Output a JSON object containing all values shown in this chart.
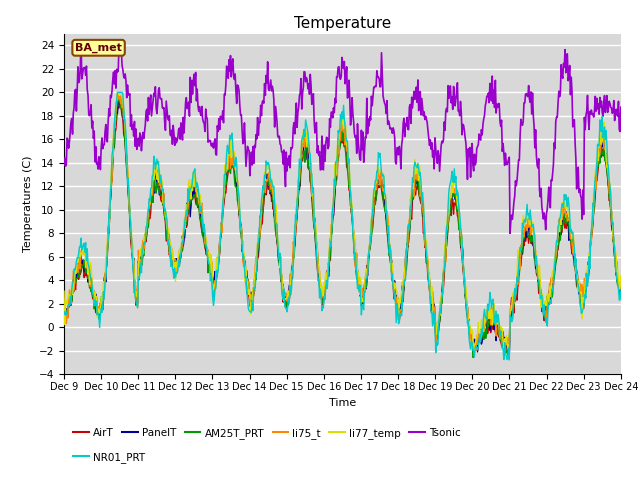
{
  "title": "Temperature",
  "xlabel": "Time",
  "ylabel": "Temperatures (C)",
  "ylim": [
    -4,
    25
  ],
  "yticks": [
    -4,
    -2,
    0,
    2,
    4,
    6,
    8,
    10,
    12,
    14,
    16,
    18,
    20,
    22,
    24
  ],
  "xtick_labels": [
    "Dec 9",
    "Dec 10",
    "Dec 11",
    "Dec 12",
    "Dec 13",
    "Dec 14",
    "Dec 15",
    "Dec 16",
    "Dec 17",
    "Dec 18",
    "Dec 19",
    "Dec 20",
    "Dec 21",
    "Dec 22",
    "Dec 23",
    "Dec 24"
  ],
  "series_order": [
    "AirT",
    "PanelT",
    "AM25T_PRT",
    "li75_t",
    "li77_temp",
    "Tsonic",
    "NR01_PRT"
  ],
  "series": {
    "AirT": {
      "color": "#cc0000",
      "lw": 1.0
    },
    "PanelT": {
      "color": "#000099",
      "lw": 1.0
    },
    "AM25T_PRT": {
      "color": "#009900",
      "lw": 1.0
    },
    "li75_t": {
      "color": "#ff8800",
      "lw": 1.0
    },
    "li77_temp": {
      "color": "#dddd00",
      "lw": 1.0
    },
    "Tsonic": {
      "color": "#9900cc",
      "lw": 1.2
    },
    "NR01_PRT": {
      "color": "#00cccc",
      "lw": 1.0
    }
  },
  "bg_color": "#d8d8d8",
  "grid_color": "#ffffff",
  "fig_bg": "#ffffff",
  "annotation_text": "BA_met",
  "annotation_fg": "#660000",
  "annotation_bg": "#ffff99",
  "annotation_border": "#884400",
  "legend_row1": [
    "AirT",
    "PanelT",
    "AM25T_PRT",
    "li75_t",
    "li77_temp",
    "Tsonic"
  ],
  "legend_row2": [
    "NR01_PRT"
  ]
}
